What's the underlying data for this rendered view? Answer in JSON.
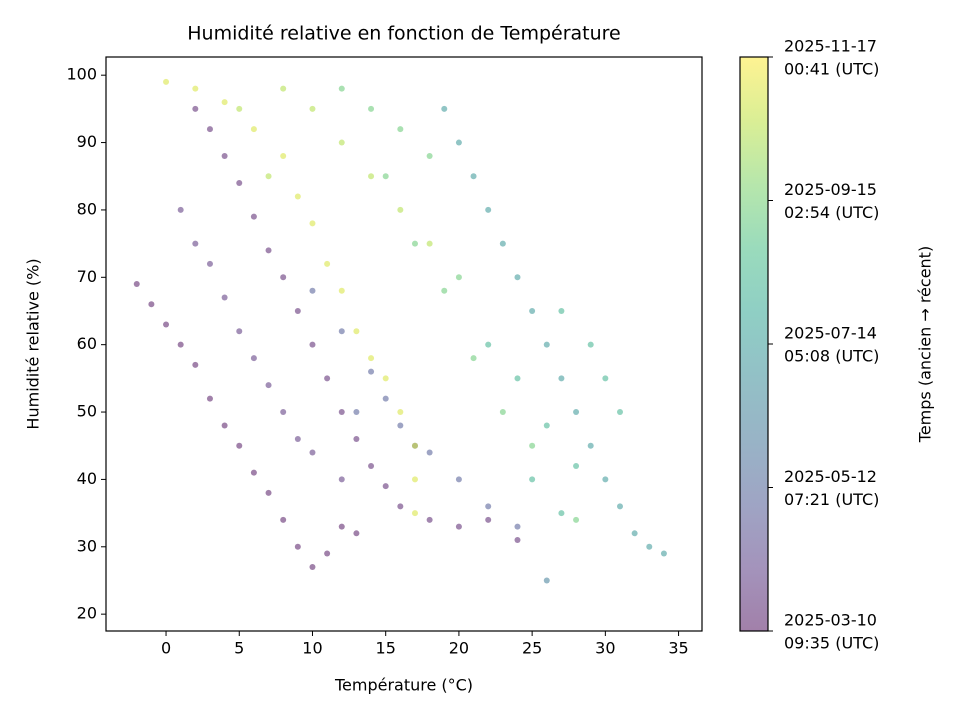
{
  "chart_data": {
    "type": "scatter",
    "title": "Humidité relative en fonction de Température",
    "xlabel": "Température (°C)",
    "ylabel": "Humidité relative (%)",
    "xlim": [
      -4.1,
      36.6
    ],
    "ylim": [
      17.5,
      102.7
    ],
    "xticks": [
      0,
      5,
      10,
      15,
      20,
      25,
      30,
      35
    ],
    "yticks": [
      20,
      30,
      40,
      50,
      60,
      70,
      80,
      90,
      100
    ],
    "colormap": "viridis",
    "alpha": 0.5,
    "colorbar": {
      "label": "Temps (ancien → récent)",
      "ticks": [
        {
          "value": "2025-03-10T09:35:00Z",
          "label": [
            "2025-03-10",
            "09:35 (UTC)"
          ]
        },
        {
          "value": "2025-05-12T07:21:00Z",
          "label": [
            "2025-05-12",
            "07:21 (UTC)"
          ]
        },
        {
          "value": "2025-07-14T05:08:00Z",
          "label": [
            "2025-07-14",
            "05:08 (UTC)"
          ]
        },
        {
          "value": "2025-09-15T02:54:00Z",
          "label": [
            "2025-09-15",
            "02:54 (UTC)"
          ]
        },
        {
          "value": "2025-11-17T00:41:00Z",
          "label": [
            "2025-11-17",
            "00:41 (UTC)"
          ]
        }
      ]
    },
    "series": [
      {
        "x": [
          -2,
          -1,
          0,
          1,
          2,
          3,
          4,
          5,
          6,
          7,
          8,
          9,
          10,
          11,
          12,
          13,
          2,
          3,
          4,
          5,
          6,
          7,
          8,
          9,
          10,
          11,
          12,
          13,
          14,
          15,
          16,
          18,
          20,
          22,
          24,
          1,
          2,
          3,
          4,
          5,
          6,
          7,
          8,
          9,
          10,
          12,
          10,
          12,
          14,
          15,
          16,
          18,
          20,
          22,
          24,
          26,
          13,
          17,
          19,
          20,
          21,
          22,
          23,
          24,
          25,
          26,
          27,
          28,
          29,
          30,
          31,
          32,
          33,
          34,
          22,
          24,
          26,
          28,
          25,
          27,
          30,
          31,
          29,
          27,
          12,
          14,
          16,
          18,
          17,
          19,
          21,
          23,
          25,
          28,
          15,
          20,
          0,
          2,
          4,
          6,
          8,
          9,
          10,
          11,
          12,
          13,
          14,
          15,
          16,
          17,
          17,
          17,
          8,
          10,
          12,
          14,
          16,
          18,
          5,
          7
        ],
        "y": [
          69,
          66,
          63,
          60,
          57,
          52,
          48,
          45,
          41,
          38,
          34,
          30,
          27,
          29,
          33,
          32,
          95,
          92,
          88,
          84,
          79,
          74,
          70,
          65,
          60,
          55,
          50,
          46,
          42,
          39,
          36,
          34,
          33,
          34,
          31,
          80,
          75,
          72,
          67,
          62,
          58,
          54,
          50,
          46,
          44,
          40,
          68,
          62,
          56,
          52,
          48,
          44,
          40,
          36,
          33,
          25,
          50,
          45,
          95,
          90,
          85,
          80,
          75,
          70,
          65,
          60,
          55,
          50,
          45,
          40,
          36,
          32,
          30,
          29,
          60,
          55,
          48,
          42,
          40,
          35,
          55,
          50,
          60,
          65,
          98,
          95,
          92,
          88,
          75,
          68,
          58,
          50,
          45,
          34,
          85,
          70,
          99,
          98,
          96,
          92,
          88,
          82,
          78,
          72,
          68,
          62,
          58,
          55,
          50,
          45,
          40,
          35,
          98,
          95,
          90,
          85,
          80,
          75,
          95,
          85
        ],
        "c": [
          "2025-03-12",
          "2025-03-12",
          "2025-03-12",
          "2025-03-12",
          "2025-03-12",
          "2025-03-12",
          "2025-03-12",
          "2025-03-12",
          "2025-03-12",
          "2025-03-12",
          "2025-03-12",
          "2025-03-12",
          "2025-03-12",
          "2025-03-12",
          "2025-03-12",
          "2025-03-12",
          "2025-03-20",
          "2025-03-20",
          "2025-03-20",
          "2025-03-20",
          "2025-03-20",
          "2025-03-20",
          "2025-03-20",
          "2025-03-20",
          "2025-03-20",
          "2025-03-20",
          "2025-03-20",
          "2025-03-20",
          "2025-03-20",
          "2025-03-20",
          "2025-03-20",
          "2025-03-20",
          "2025-03-20",
          "2025-03-20",
          "2025-03-20",
          "2025-04-01",
          "2025-04-01",
          "2025-04-01",
          "2025-04-01",
          "2025-04-01",
          "2025-04-01",
          "2025-04-01",
          "2025-04-01",
          "2025-04-01",
          "2025-04-01",
          "2025-04-01",
          "2025-05-05",
          "2025-05-05",
          "2025-05-05",
          "2025-05-05",
          "2025-05-05",
          "2025-05-05",
          "2025-05-05",
          "2025-05-05",
          "2025-05-05",
          "2025-06-10",
          "2025-05-05",
          "2025-05-05",
          "2025-07-10",
          "2025-07-10",
          "2025-07-10",
          "2025-07-10",
          "2025-07-10",
          "2025-07-10",
          "2025-07-10",
          "2025-07-10",
          "2025-07-10",
          "2025-07-10",
          "2025-07-10",
          "2025-07-10",
          "2025-07-10",
          "2025-07-10",
          "2025-07-10",
          "2025-07-10",
          "2025-08-10",
          "2025-08-10",
          "2025-08-10",
          "2025-08-10",
          "2025-08-10",
          "2025-08-10",
          "2025-08-10",
          "2025-08-10",
          "2025-08-10",
          "2025-08-10",
          "2025-09-10",
          "2025-09-10",
          "2025-09-10",
          "2025-09-10",
          "2025-09-10",
          "2025-09-10",
          "2025-09-10",
          "2025-09-10",
          "2025-09-10",
          "2025-09-10",
          "2025-09-10",
          "2025-09-10",
          "2025-11-01",
          "2025-11-01",
          "2025-11-01",
          "2025-11-01",
          "2025-11-01",
          "2025-11-01",
          "2025-11-01",
          "2025-11-01",
          "2025-11-01",
          "2025-11-01",
          "2025-11-01",
          "2025-11-01",
          "2025-11-01",
          "2025-11-01",
          "2025-11-01",
          "2025-11-01",
          "2025-10-15",
          "2025-10-15",
          "2025-10-15",
          "2025-10-15",
          "2025-10-15",
          "2025-10-15",
          "2025-10-15",
          "2025-10-15"
        ]
      }
    ]
  }
}
